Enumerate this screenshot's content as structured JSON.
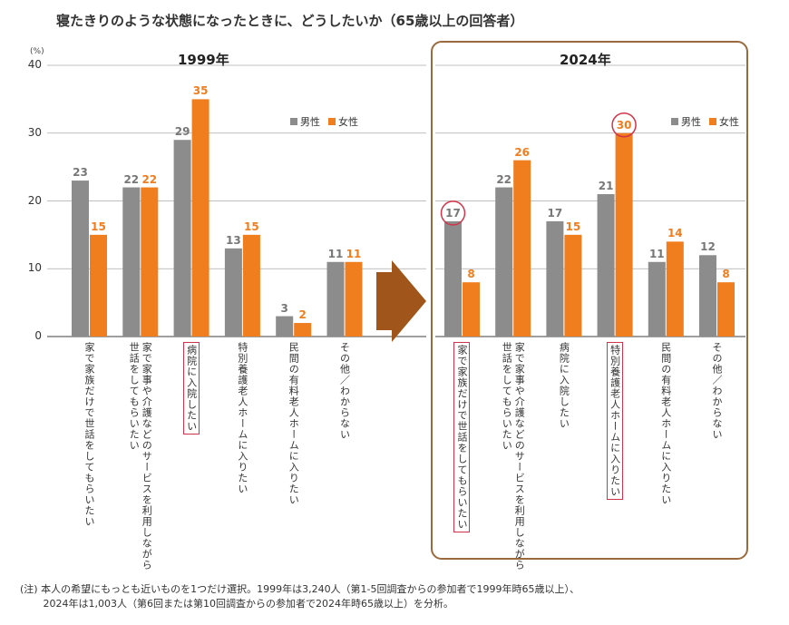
{
  "title": "寝たきりのような状態になったときに、どうしたいか（65歳以上の回答者）",
  "note": "(注) 本人の希望にもっとも近いものを1つだけ選択。1999年は3,240人（第1-5回調査からの参加者で1999年時65歳以上）、\n　　 2024年は1,003人（第6回または第10回調査からの参加者で2024年時65歳以上）を分析。",
  "colors": {
    "male": "#8c8c8c",
    "female": "#f07d1e",
    "highlight": "#d2334a",
    "box": "#9a6a3c",
    "arrow": "#a0561a"
  },
  "chart_data": [
    {
      "type": "bar",
      "title": "1999年",
      "ylabel": "(%)",
      "ylim": [
        0,
        40
      ],
      "yticks": [
        "0",
        "10",
        "20",
        "30",
        "40"
      ],
      "grid": true,
      "legend": "top-right",
      "categories": [
        "家で家族だけで世話をしてもらいたい",
        "家で家事や介護などのサービスを利用しながら\n世話をしてもらいたい",
        "病院に入院したい",
        "特別養護老人ホームに入りたい",
        "民間の有料老人ホームに入りたい",
        "その他／わからない"
      ],
      "highlighted_categories": [
        2
      ],
      "circled_values": [],
      "series": [
        {
          "name": "男性",
          "values": [
            23,
            22,
            29,
            13,
            3,
            11
          ]
        },
        {
          "name": "女性",
          "values": [
            15,
            22,
            35,
            15,
            2,
            11
          ]
        }
      ]
    },
    {
      "type": "bar",
      "title": "2024年",
      "ylim": [
        0,
        40
      ],
      "grid": true,
      "legend": "top-right",
      "categories": [
        "家で家族だけで世話をしてもらいたい",
        "家で家事や介護などのサービスを利用しながら\n世話をしてもらいたい",
        "病院に入院したい",
        "特別養護老人ホームに入りたい",
        "民間の有料老人ホームに入りたい",
        "その他／わからない"
      ],
      "highlighted_categories": [
        0,
        3
      ],
      "circled_values": [
        [
          0,
          0
        ],
        [
          1,
          3
        ]
      ],
      "series": [
        {
          "name": "男性",
          "values": [
            17,
            22,
            17,
            21,
            11,
            12
          ]
        },
        {
          "name": "女性",
          "values": [
            8,
            26,
            15,
            30,
            14,
            8
          ]
        }
      ]
    }
  ]
}
